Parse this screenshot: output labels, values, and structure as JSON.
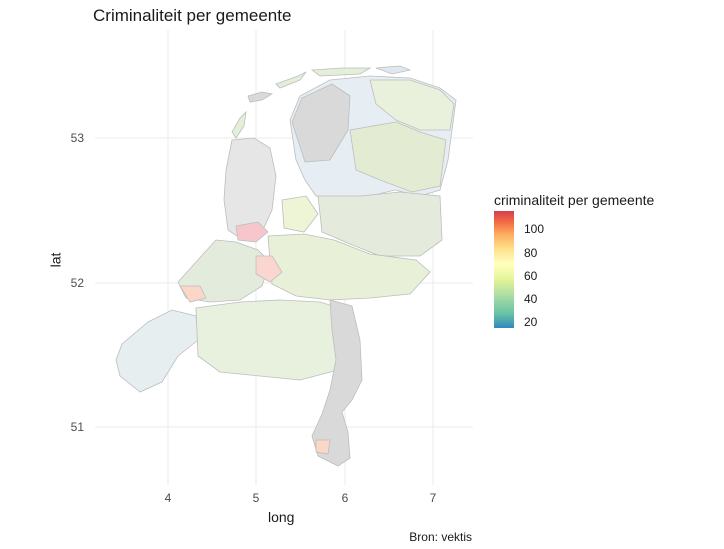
{
  "title": "Criminaliteit per gemeente",
  "caption": "Bron: vektis",
  "xlabel": "long",
  "ylabel": "lat",
  "x_ticks": [
    "4",
    "5",
    "6",
    "7"
  ],
  "y_ticks": [
    "53",
    "52",
    "51"
  ],
  "legend": {
    "title": "criminaliteit per gemeente",
    "ticks": [
      "100",
      "80",
      "60",
      "40",
      "20"
    ],
    "colors": [
      "#3288bd",
      "#abdda4",
      "#ffffbf",
      "#fdae61",
      "#d53e4f"
    ],
    "na_color": "#d9d9d9"
  }
}
